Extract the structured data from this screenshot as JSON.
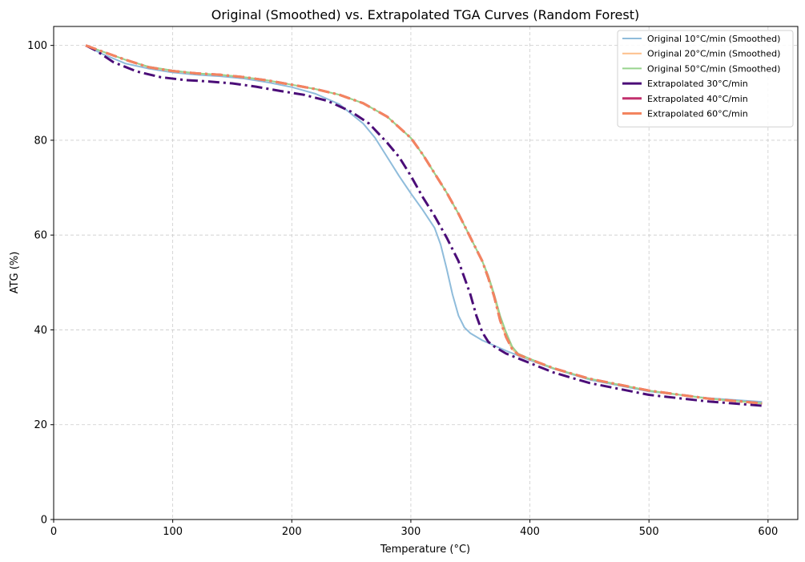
{
  "chart_data": {
    "type": "line",
    "title": "Original (Smoothed) vs. Extrapolated TGA Curves (Random Forest)",
    "xlabel": "Temperature (°C)",
    "ylabel": "ATG (%)",
    "xlim": [
      0,
      625
    ],
    "ylim": [
      0,
      104
    ],
    "xticks": [
      0,
      100,
      200,
      300,
      400,
      500,
      600
    ],
    "yticks": [
      0,
      20,
      40,
      60,
      80,
      100
    ],
    "grid": true,
    "legend_position": "top-right",
    "series": [
      {
        "name": "Original 10°C/min (Smoothed)",
        "color": "#8fbcdb",
        "style": "solid",
        "width": 2,
        "x": [
          27,
          40,
          60,
          80,
          100,
          120,
          140,
          160,
          180,
          200,
          220,
          240,
          260,
          270,
          280,
          290,
          300,
          310,
          320,
          325,
          330,
          335,
          340,
          345,
          350,
          360,
          380,
          400,
          420,
          450,
          500,
          550,
          595
        ],
        "y": [
          100,
          98.3,
          96.2,
          95.1,
          94.3,
          93.8,
          93.5,
          93.0,
          92.2,
          91.2,
          89.8,
          87.6,
          83.5,
          80.5,
          76.5,
          72.5,
          68.8,
          65.3,
          61.5,
          58.0,
          53.0,
          47.5,
          43.0,
          40.5,
          39.3,
          37.8,
          35.6,
          33.6,
          31.8,
          29.5,
          27.0,
          25.6,
          24.8
        ]
      },
      {
        "name": "Original 20°C/min (Smoothed)",
        "color": "#fdbf8a",
        "style": "solid",
        "width": 2,
        "x": [
          27,
          40,
          60,
          80,
          100,
          120,
          140,
          160,
          180,
          200,
          220,
          240,
          260,
          280,
          300,
          310,
          320,
          330,
          340,
          350,
          360,
          365,
          370,
          375,
          380,
          385,
          390,
          400,
          420,
          450,
          500,
          550,
          595
        ],
        "y": [
          100,
          98.8,
          97.0,
          95.4,
          94.6,
          94.1,
          93.8,
          93.3,
          92.6,
          91.7,
          90.8,
          89.6,
          87.8,
          85.0,
          80.5,
          77.0,
          73.0,
          69.0,
          64.5,
          59.5,
          54.5,
          51.0,
          47.0,
          42.0,
          38.5,
          36.0,
          34.8,
          33.8,
          31.9,
          29.7,
          27.2,
          25.5,
          24.5
        ]
      },
      {
        "name": "Original 50°C/min (Smoothed)",
        "color": "#98d48e",
        "style": "solid",
        "width": 2,
        "x": [
          27,
          40,
          60,
          80,
          100,
          120,
          140,
          160,
          180,
          200,
          220,
          240,
          260,
          280,
          300,
          310,
          320,
          330,
          340,
          350,
          360,
          365,
          370,
          375,
          380,
          385,
          390,
          400,
          420,
          450,
          500,
          550,
          595
        ],
        "y": [
          100,
          98.8,
          97.0,
          95.5,
          94.7,
          94.1,
          93.8,
          93.3,
          92.6,
          91.7,
          90.8,
          89.6,
          87.8,
          85.0,
          80.5,
          77.0,
          73.0,
          69.0,
          64.5,
          59.5,
          54.5,
          51.5,
          47.5,
          43.0,
          39.5,
          36.5,
          35.0,
          33.9,
          31.9,
          29.7,
          27.2,
          25.5,
          24.5
        ]
      },
      {
        "name": "Extrapolated 30°C/min",
        "color": "#4b0d78",
        "style": "dashdot",
        "width": 3,
        "x": [
          27,
          35,
          50,
          70,
          90,
          110,
          130,
          150,
          170,
          190,
          210,
          230,
          250,
          265,
          280,
          290,
          300,
          310,
          320,
          330,
          340,
          350,
          355,
          360,
          365,
          370,
          380,
          390,
          400,
          420,
          450,
          500,
          550,
          595
        ],
        "y": [
          100,
          99.0,
          96.5,
          94.5,
          93.3,
          92.7,
          92.4,
          92.0,
          91.3,
          90.4,
          89.6,
          88.3,
          86.0,
          83.5,
          79.5,
          76.5,
          72.5,
          68.0,
          64.0,
          59.5,
          54.5,
          47.5,
          43.0,
          39.5,
          37.5,
          36.5,
          35.0,
          34.0,
          33.0,
          31.0,
          28.8,
          26.3,
          24.9,
          24.0
        ]
      },
      {
        "name": "Extrapolated 40°C/min",
        "color": "#c2306e",
        "style": "dashdot",
        "width": 3,
        "x": [
          27,
          40,
          60,
          80,
          100,
          120,
          140,
          160,
          180,
          200,
          220,
          240,
          260,
          280,
          300,
          310,
          320,
          330,
          340,
          350,
          360,
          365,
          370,
          375,
          380,
          385,
          390,
          400,
          420,
          450,
          500,
          550,
          595
        ],
        "y": [
          100,
          98.8,
          97.0,
          95.4,
          94.6,
          94.1,
          93.8,
          93.3,
          92.6,
          91.7,
          90.8,
          89.6,
          87.8,
          85.0,
          80.5,
          77.0,
          73.0,
          69.0,
          64.5,
          59.5,
          54.5,
          51.0,
          47.0,
          42.0,
          38.5,
          36.0,
          34.8,
          33.8,
          31.9,
          29.7,
          27.2,
          25.5,
          24.5
        ]
      },
      {
        "name": "Extrapolated 60°C/min",
        "color": "#f3845f",
        "style": "dashdot",
        "width": 3,
        "x": [
          27,
          40,
          60,
          80,
          100,
          120,
          140,
          160,
          180,
          200,
          220,
          240,
          260,
          280,
          300,
          310,
          320,
          330,
          340,
          350,
          360,
          365,
          370,
          375,
          380,
          385,
          390,
          400,
          420,
          450,
          500,
          550,
          595
        ],
        "y": [
          100,
          98.8,
          97.0,
          95.4,
          94.6,
          94.1,
          93.8,
          93.3,
          92.6,
          91.7,
          90.8,
          89.6,
          87.8,
          85.0,
          80.5,
          77.0,
          73.0,
          69.0,
          64.5,
          59.5,
          54.5,
          51.0,
          47.0,
          42.0,
          38.5,
          36.0,
          34.8,
          33.8,
          31.9,
          29.7,
          27.2,
          25.5,
          24.5
        ]
      }
    ]
  }
}
